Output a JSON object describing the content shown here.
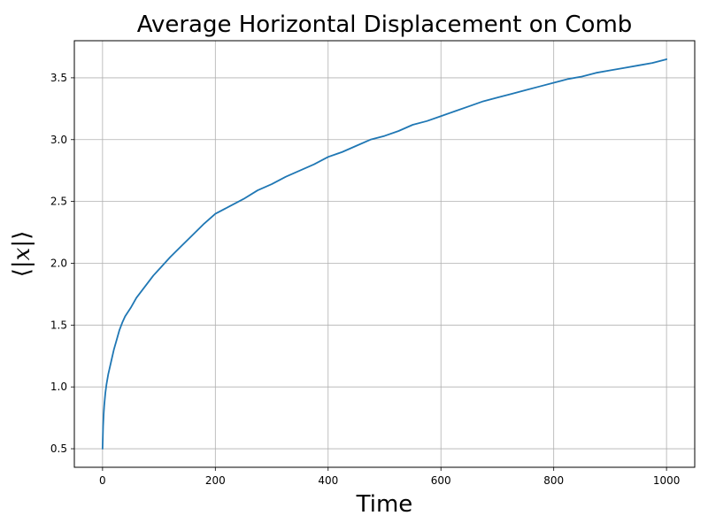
{
  "chart_data": {
    "type": "line",
    "title": "Average Horizontal Displacement on Comb",
    "xlabel": "Time",
    "ylabel": {
      "open": "⟨|",
      "var": "x",
      "close": "|⟩"
    },
    "xlim": [
      -50,
      1050
    ],
    "ylim": [
      0.35,
      3.8
    ],
    "xticks": [
      0,
      200,
      400,
      600,
      800,
      1000
    ],
    "xtick_labels": [
      "0",
      "200",
      "400",
      "600",
      "800",
      "1000"
    ],
    "yticks": [
      0.5,
      1.0,
      1.5,
      2.0,
      2.5,
      3.0,
      3.5
    ],
    "ytick_labels": [
      "0.5",
      "1.0",
      "1.5",
      "2.0",
      "2.5",
      "3.0",
      "3.5"
    ],
    "grid": true,
    "series": [
      {
        "color": "#1f77b4",
        "x": [
          0,
          1,
          2,
          3,
          5,
          7,
          10,
          15,
          20,
          25,
          30,
          35,
          40,
          50,
          60,
          70,
          80,
          90,
          100,
          120,
          140,
          160,
          180,
          200,
          225,
          250,
          275,
          300,
          325,
          350,
          375,
          400,
          425,
          450,
          475,
          500,
          525,
          550,
          575,
          600,
          625,
          650,
          675,
          700,
          725,
          750,
          775,
          800,
          825,
          850,
          875,
          900,
          925,
          950,
          975,
          1000
        ],
        "y": [
          0.5,
          0.68,
          0.78,
          0.85,
          0.95,
          1.02,
          1.1,
          1.2,
          1.3,
          1.38,
          1.46,
          1.52,
          1.57,
          1.64,
          1.72,
          1.78,
          1.84,
          1.9,
          1.95,
          2.05,
          2.14,
          2.23,
          2.32,
          2.4,
          2.46,
          2.52,
          2.59,
          2.64,
          2.7,
          2.75,
          2.8,
          2.86,
          2.9,
          2.95,
          3.0,
          3.03,
          3.07,
          3.12,
          3.15,
          3.19,
          3.23,
          3.27,
          3.31,
          3.34,
          3.37,
          3.4,
          3.43,
          3.46,
          3.49,
          3.51,
          3.54,
          3.56,
          3.58,
          3.6,
          3.62,
          3.65
        ]
      }
    ]
  }
}
